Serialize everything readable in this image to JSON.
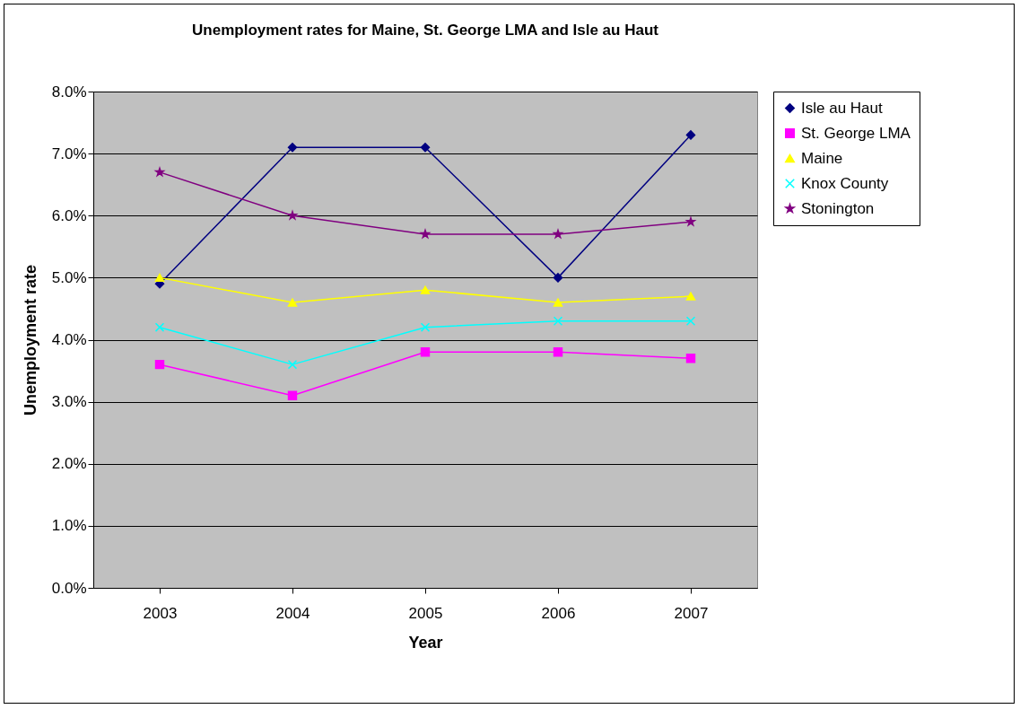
{
  "chart_data": {
    "type": "line",
    "title": "Unemployment rates for Maine, St. George LMA and Isle au Haut",
    "xlabel": "Year",
    "ylabel": "Unemployment rate",
    "categories": [
      "2003",
      "2004",
      "2005",
      "2006",
      "2007"
    ],
    "series": [
      {
        "name": "Isle au Haut",
        "color": "#000080",
        "marker": "diamond",
        "values": [
          4.9,
          7.1,
          7.1,
          5.0,
          7.3
        ]
      },
      {
        "name": "St. George LMA",
        "color": "#ff00ff",
        "marker": "square",
        "values": [
          3.6,
          3.1,
          3.8,
          3.8,
          3.7
        ]
      },
      {
        "name": "Maine",
        "color": "#ffff00",
        "marker": "triangle",
        "values": [
          5.0,
          4.6,
          4.8,
          4.6,
          4.7
        ]
      },
      {
        "name": "Knox County",
        "color": "#00ffff",
        "marker": "cross",
        "values": [
          4.2,
          3.6,
          4.2,
          4.3,
          4.3
        ]
      },
      {
        "name": "Stonington",
        "color": "#800080",
        "marker": "star",
        "values": [
          6.7,
          6.0,
          5.7,
          5.7,
          5.9
        ]
      }
    ],
    "ylim": [
      0,
      8
    ],
    "yticks": [
      {
        "value": 0,
        "label": "0.0%"
      },
      {
        "value": 1,
        "label": "1.0%"
      },
      {
        "value": 2,
        "label": "2.0%"
      },
      {
        "value": 3,
        "label": "3.0%"
      },
      {
        "value": 4,
        "label": "4.0%"
      },
      {
        "value": 5,
        "label": "5.0%"
      },
      {
        "value": 6,
        "label": "6.0%"
      },
      {
        "value": 7,
        "label": "7.0%"
      },
      {
        "value": 8,
        "label": "8.0%"
      }
    ],
    "grid": "y",
    "legend": "right"
  }
}
